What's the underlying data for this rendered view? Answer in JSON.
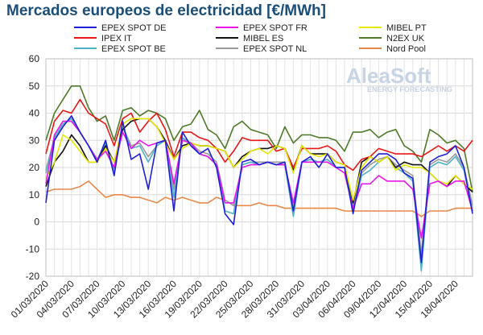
{
  "chart_data": {
    "type": "line",
    "title": "Mercados europeos de electricidad [€/MWh]",
    "ylim": [
      -20,
      60
    ],
    "yticks": [
      -20,
      -10,
      0,
      10,
      20,
      30,
      40,
      50,
      60
    ],
    "grid": true,
    "legend_position": "top",
    "watermark": {
      "brand": "AleaSoft",
      "tagline": "ENERGY FORECASTING"
    },
    "x_tick_labels": [
      "01/03/2020",
      "04/03/2020",
      "07/03/2020",
      "10/03/2020",
      "13/03/2020",
      "16/03/2020",
      "19/03/2020",
      "22/03/2020",
      "25/03/2020",
      "28/03/2020",
      "31/03/2020",
      "03/04/2020",
      "06/04/2020",
      "09/04/2020",
      "12/04/2020",
      "15/04/2020",
      "18/04/2020"
    ],
    "x": [
      "01/03/2020",
      "02/03/2020",
      "03/03/2020",
      "04/03/2020",
      "05/03/2020",
      "06/03/2020",
      "07/03/2020",
      "08/03/2020",
      "09/03/2020",
      "10/03/2020",
      "11/03/2020",
      "12/03/2020",
      "13/03/2020",
      "14/03/2020",
      "15/03/2020",
      "16/03/2020",
      "17/03/2020",
      "18/03/2020",
      "19/03/2020",
      "20/03/2020",
      "21/03/2020",
      "22/03/2020",
      "23/03/2020",
      "24/03/2020",
      "25/03/2020",
      "26/03/2020",
      "27/03/2020",
      "28/03/2020",
      "29/03/2020",
      "30/03/2020",
      "31/03/2020",
      "01/04/2020",
      "02/04/2020",
      "03/04/2020",
      "04/04/2020",
      "05/04/2020",
      "06/04/2020",
      "07/04/2020",
      "08/04/2020",
      "09/04/2020",
      "10/04/2020",
      "11/04/2020",
      "12/04/2020",
      "13/04/2020",
      "14/04/2020",
      "15/04/2020",
      "16/04/2020",
      "17/04/2020",
      "18/04/2020",
      "19/04/2020",
      "20/04/2020"
    ],
    "series": [
      {
        "name": "EPEX SPOT DE",
        "color": "#1f1fd6",
        "values": [
          7,
          30,
          35,
          39,
          33,
          28,
          22,
          30,
          17,
          37,
          23,
          25,
          12,
          29,
          30,
          4,
          33,
          28,
          25,
          27,
          20,
          3,
          -1,
          22,
          23,
          21,
          22,
          21,
          22,
          4,
          22,
          24,
          20,
          25,
          20,
          20,
          3,
          19,
          22,
          25,
          25,
          23,
          18,
          16,
          -15,
          22,
          24,
          25,
          28,
          20,
          3
        ]
      },
      {
        "name": "EPEX SPOT FR",
        "color": "#e815e8",
        "values": [
          14,
          32,
          37,
          37,
          33,
          28,
          23,
          26,
          20,
          33,
          27,
          30,
          28,
          29,
          30,
          14,
          30,
          29,
          25,
          24,
          21,
          7,
          7,
          20,
          21,
          21,
          22,
          21,
          21,
          7,
          22,
          22,
          22,
          22,
          20,
          18,
          5,
          14,
          14,
          17,
          15,
          15,
          15,
          12,
          -6,
          14,
          15,
          13,
          15,
          15,
          4
        ]
      },
      {
        "name": "MIBEL PT",
        "color": "#e8e800",
        "values": [
          16,
          22,
          32,
          30,
          26,
          22,
          22,
          27,
          22,
          36,
          38,
          38,
          38,
          35,
          29,
          23,
          27,
          29,
          28,
          28,
          27,
          26,
          20,
          23,
          26,
          27,
          25,
          28,
          27,
          18,
          28,
          25,
          24,
          25,
          22,
          21,
          8,
          20,
          24,
          22,
          24,
          19,
          21,
          20,
          20,
          18,
          15,
          14,
          17,
          14,
          12
        ]
      },
      {
        "name": "IPEX IT",
        "color": "#e81717",
        "values": [
          25,
          37,
          41,
          40,
          45,
          40,
          38,
          36,
          28,
          38,
          40,
          33,
          37,
          40,
          34,
          24,
          33,
          33,
          31,
          30,
          27,
          22,
          26,
          31,
          30,
          30,
          30,
          26,
          27,
          20,
          27,
          27,
          27,
          28,
          26,
          21,
          19,
          23,
          24,
          27,
          26,
          25,
          25,
          25,
          24,
          26,
          28,
          26,
          28,
          26,
          30
        ]
      },
      {
        "name": "MIBEL ES",
        "color": "#111111",
        "values": [
          13,
          22,
          26,
          32,
          28,
          22,
          22,
          28,
          22,
          34,
          37,
          38,
          38,
          35,
          30,
          23,
          28,
          29,
          28,
          28,
          27,
          26,
          20,
          24,
          26,
          27,
          27,
          28,
          27,
          19,
          28,
          25,
          25,
          25,
          22,
          21,
          7,
          22,
          24,
          22,
          24,
          20,
          22,
          21,
          21,
          18,
          15,
          13,
          17,
          14,
          11
        ]
      },
      {
        "name": "N2EX UK",
        "color": "#4f7a2a",
        "values": [
          30,
          40,
          45,
          50,
          50,
          42,
          37,
          39,
          30,
          41,
          42,
          39,
          41,
          40,
          38,
          30,
          35,
          36,
          41,
          34,
          32,
          27,
          35,
          37,
          34,
          33,
          32,
          27,
          35,
          29,
          32,
          32,
          31,
          31,
          30,
          26,
          33,
          33,
          34,
          31,
          33,
          34,
          28,
          26,
          22,
          34,
          32,
          29,
          30,
          27,
          11
        ]
      },
      {
        "name": "EPEX SPOT BE",
        "color": "#4fb3c8",
        "values": [
          18,
          31,
          36,
          38,
          33,
          28,
          22,
          29,
          18,
          35,
          27,
          28,
          22,
          28,
          30,
          9,
          31,
          28,
          25,
          24,
          21,
          4,
          3,
          21,
          22,
          21,
          22,
          21,
          21,
          2,
          22,
          23,
          22,
          23,
          20,
          20,
          4,
          17,
          19,
          22,
          24,
          20,
          18,
          15,
          -18,
          20,
          22,
          21,
          24,
          19,
          4
        ]
      },
      {
        "name": "EPEX SPOT NL",
        "color": "#9a9a9a",
        "values": [
          19,
          31,
          36,
          38,
          33,
          28,
          23,
          29,
          19,
          35,
          28,
          29,
          24,
          28,
          30,
          12,
          31,
          29,
          26,
          25,
          22,
          8,
          6,
          21,
          22,
          22,
          22,
          22,
          22,
          5,
          22,
          23,
          22,
          23,
          20,
          20,
          6,
          18,
          21,
          23,
          24,
          21,
          19,
          17,
          -12,
          21,
          23,
          22,
          25,
          20,
          6
        ]
      },
      {
        "name": "Nord Pool",
        "color": "#e8894a",
        "values": [
          11,
          12,
          12,
          12,
          13,
          15,
          12,
          9,
          10,
          10,
          9,
          9,
          8,
          7,
          9,
          8,
          9,
          8,
          7,
          7,
          9,
          8,
          6,
          6,
          6,
          7,
          6,
          6,
          5,
          5,
          5,
          5,
          5,
          5,
          5,
          4,
          4,
          4,
          4,
          4,
          4,
          4,
          4,
          4,
          2,
          4,
          4,
          4,
          5,
          5,
          5
        ]
      }
    ]
  }
}
